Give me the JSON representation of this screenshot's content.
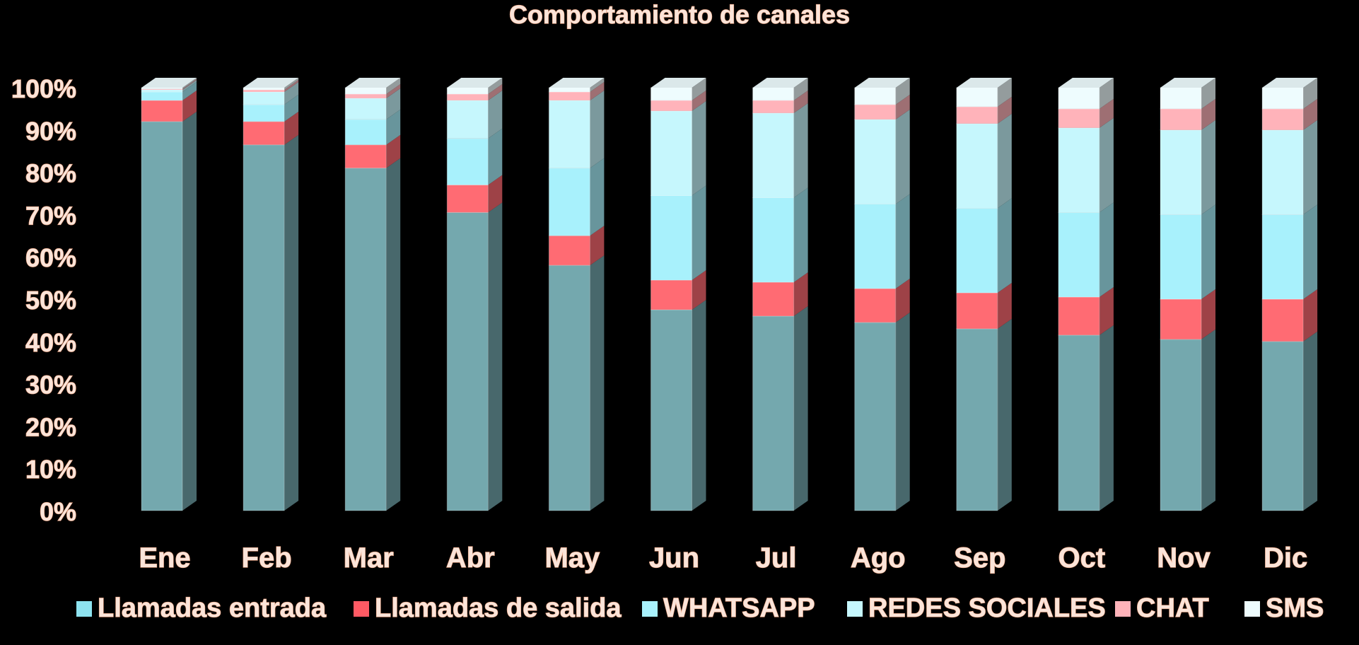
{
  "chart_data": {
    "type": "bar",
    "stacked": "percent",
    "three_d": true,
    "title": "Comportamiento de canales",
    "categories": [
      "Ene",
      "Feb",
      "Mar",
      "Abr",
      "May",
      "Jun",
      "Jul",
      "Ago",
      "Sep",
      "Oct",
      "Nov",
      "Dic"
    ],
    "y_ticks": [
      "0%",
      "10%",
      "20%",
      "30%",
      "40%",
      "50%",
      "60%",
      "70%",
      "80%",
      "90%",
      "100%"
    ],
    "ylim": [
      0,
      100
    ],
    "grid": false,
    "legend_position": "bottom",
    "series": [
      {
        "name": "Llamadas entrada",
        "color": "#74a8ae",
        "legend_color": "#8ee3f0",
        "values": [
          92,
          86.5,
          81,
          70.5,
          58,
          47.5,
          46,
          44.5,
          43,
          41.5,
          40.5,
          40
        ]
      },
      {
        "name": "Llamadas de salida",
        "color": "#ff6b73",
        "legend_color": "#ff5a64",
        "values": [
          5,
          5.5,
          5.5,
          6.5,
          7,
          7,
          8,
          8,
          8.5,
          9,
          9.5,
          10
        ]
      },
      {
        "name": "WHATSAPP",
        "color": "#a8f1fc",
        "legend_color": "#a8f1fc",
        "values": [
          2,
          4,
          6,
          11,
          16,
          20,
          20,
          20,
          20,
          20,
          20,
          20
        ]
      },
      {
        "name": "REDES SOCIALES",
        "color": "#c6f7fd",
        "legend_color": "#c6f7fd",
        "values": [
          0.5,
          3,
          5,
          9,
          16,
          20,
          20,
          20,
          20,
          20,
          20,
          20
        ]
      },
      {
        "name": "CHAT",
        "color": "#ffb3ba",
        "legend_color": "#ffb3ba",
        "values": [
          0.2,
          0.5,
          1,
          1.5,
          2,
          2.5,
          3,
          3.5,
          4,
          4.5,
          5,
          5
        ]
      },
      {
        "name": "SMS",
        "color": "#eefcfe",
        "legend_color": "#eefcfe",
        "values": [
          0.3,
          0.5,
          1.5,
          1.5,
          1,
          3,
          3,
          4,
          4.5,
          5,
          5,
          5
        ]
      }
    ]
  }
}
